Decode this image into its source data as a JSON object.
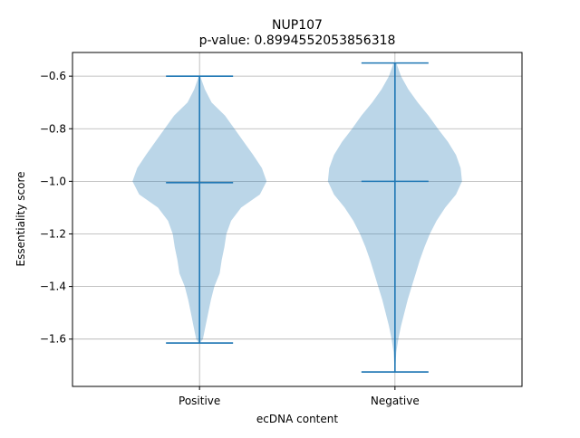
{
  "chart_data": {
    "type": "violin",
    "title": "NUP107",
    "subtitle": "p-value: 0.8994552053856318",
    "xlabel": "ecDNA content",
    "ylabel": "Essentiality score",
    "categories": [
      "Positive",
      "Negative"
    ],
    "ylim": [
      -1.78,
      -0.51
    ],
    "yticks": [
      -0.6,
      -0.8,
      -1.0,
      -1.2,
      -1.4,
      -1.6
    ],
    "ytick_labels": [
      "−0.6",
      "−0.8",
      "−1.0",
      "−1.2",
      "−1.4",
      "−1.6"
    ],
    "grid": true,
    "series": [
      {
        "category": "Positive",
        "max": -0.6,
        "median": -1.005,
        "min": -1.615,
        "density": [
          [
            -0.6,
            0.01
          ],
          [
            -0.65,
            0.08
          ],
          [
            -0.7,
            0.18
          ],
          [
            -0.75,
            0.38
          ],
          [
            -0.8,
            0.52
          ],
          [
            -0.85,
            0.66
          ],
          [
            -0.9,
            0.8
          ],
          [
            -0.95,
            0.93
          ],
          [
            -1.0,
            1.0
          ],
          [
            -1.05,
            0.9
          ],
          [
            -1.1,
            0.62
          ],
          [
            -1.15,
            0.47
          ],
          [
            -1.2,
            0.4
          ],
          [
            -1.25,
            0.37
          ],
          [
            -1.3,
            0.33
          ],
          [
            -1.35,
            0.3
          ],
          [
            -1.4,
            0.22
          ],
          [
            -1.45,
            0.17
          ],
          [
            -1.5,
            0.13
          ],
          [
            -1.55,
            0.09
          ],
          [
            -1.6,
            0.05
          ],
          [
            -1.615,
            0.005
          ]
        ]
      },
      {
        "category": "Negative",
        "max": -0.55,
        "median": -1.0,
        "min": -1.725,
        "density": [
          [
            -0.55,
            0.02
          ],
          [
            -0.6,
            0.09
          ],
          [
            -0.65,
            0.2
          ],
          [
            -0.7,
            0.34
          ],
          [
            -0.75,
            0.5
          ],
          [
            -0.8,
            0.64
          ],
          [
            -0.85,
            0.79
          ],
          [
            -0.9,
            0.91
          ],
          [
            -0.95,
            0.98
          ],
          [
            -1.0,
            1.0
          ],
          [
            -1.05,
            0.91
          ],
          [
            -1.1,
            0.75
          ],
          [
            -1.15,
            0.62
          ],
          [
            -1.2,
            0.52
          ],
          [
            -1.25,
            0.44
          ],
          [
            -1.3,
            0.37
          ],
          [
            -1.35,
            0.31
          ],
          [
            -1.4,
            0.25
          ],
          [
            -1.45,
            0.19
          ],
          [
            -1.5,
            0.14
          ],
          [
            -1.55,
            0.09
          ],
          [
            -1.6,
            0.05
          ],
          [
            -1.65,
            0.02
          ],
          [
            -1.7,
            0.008
          ],
          [
            -1.725,
            0.003
          ]
        ]
      }
    ],
    "colors": {
      "body_fill": "#1f77b4",
      "body_opacity": 0.3,
      "line": "#1f77b4",
      "grid": "#b0b0b0",
      "axes": "#000000"
    }
  }
}
